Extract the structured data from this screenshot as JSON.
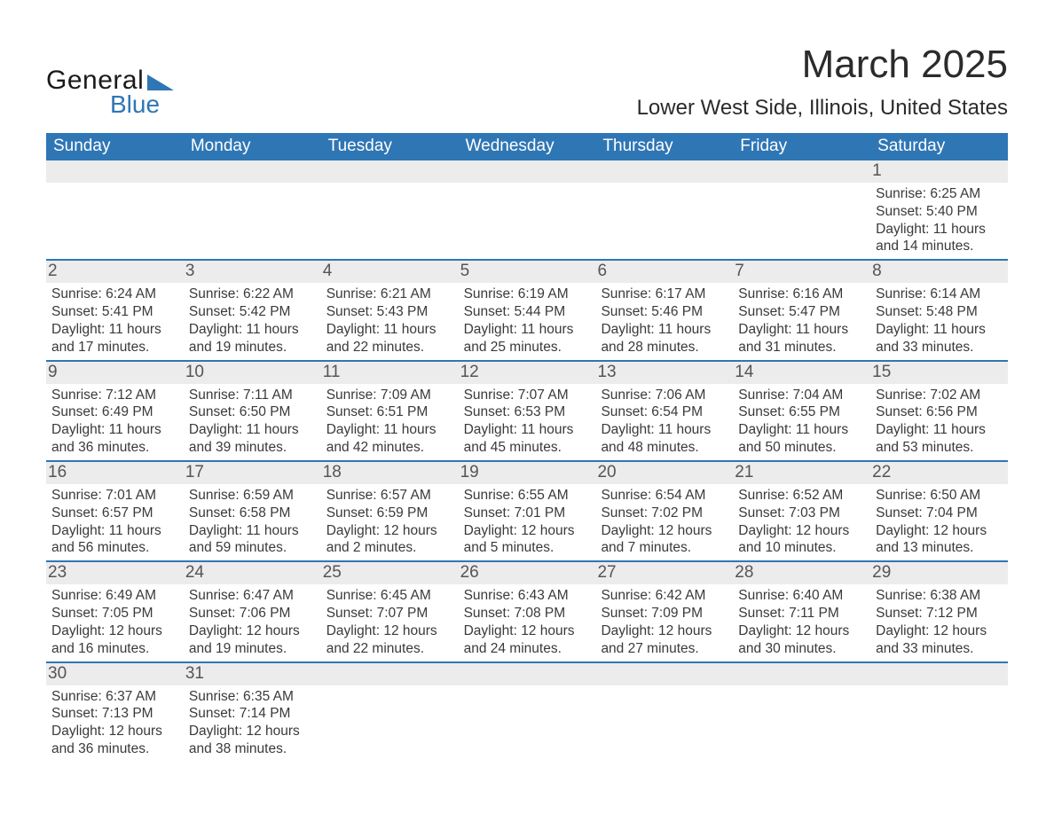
{
  "colors": {
    "header_bg": "#2f76b5",
    "daynum_bg": "#ececec",
    "week_border": "#2f76b5",
    "logo_blue": "#2f76b5"
  },
  "logo": {
    "word1": "General",
    "word2": "Blue"
  },
  "title": "March 2025",
  "location": "Lower West Side, Illinois, United States",
  "days_of_week": [
    "Sunday",
    "Monday",
    "Tuesday",
    "Wednesday",
    "Thursday",
    "Friday",
    "Saturday"
  ],
  "weeks": [
    [
      null,
      null,
      null,
      null,
      null,
      null,
      {
        "n": "1",
        "sr": "Sunrise: 6:25 AM",
        "ss": "Sunset: 5:40 PM",
        "dl": "Daylight: 11 hours and 14 minutes."
      }
    ],
    [
      {
        "n": "2",
        "sr": "Sunrise: 6:24 AM",
        "ss": "Sunset: 5:41 PM",
        "dl": "Daylight: 11 hours and 17 minutes."
      },
      {
        "n": "3",
        "sr": "Sunrise: 6:22 AM",
        "ss": "Sunset: 5:42 PM",
        "dl": "Daylight: 11 hours and 19 minutes."
      },
      {
        "n": "4",
        "sr": "Sunrise: 6:21 AM",
        "ss": "Sunset: 5:43 PM",
        "dl": "Daylight: 11 hours and 22 minutes."
      },
      {
        "n": "5",
        "sr": "Sunrise: 6:19 AM",
        "ss": "Sunset: 5:44 PM",
        "dl": "Daylight: 11 hours and 25 minutes."
      },
      {
        "n": "6",
        "sr": "Sunrise: 6:17 AM",
        "ss": "Sunset: 5:46 PM",
        "dl": "Daylight: 11 hours and 28 minutes."
      },
      {
        "n": "7",
        "sr": "Sunrise: 6:16 AM",
        "ss": "Sunset: 5:47 PM",
        "dl": "Daylight: 11 hours and 31 minutes."
      },
      {
        "n": "8",
        "sr": "Sunrise: 6:14 AM",
        "ss": "Sunset: 5:48 PM",
        "dl": "Daylight: 11 hours and 33 minutes."
      }
    ],
    [
      {
        "n": "9",
        "sr": "Sunrise: 7:12 AM",
        "ss": "Sunset: 6:49 PM",
        "dl": "Daylight: 11 hours and 36 minutes."
      },
      {
        "n": "10",
        "sr": "Sunrise: 7:11 AM",
        "ss": "Sunset: 6:50 PM",
        "dl": "Daylight: 11 hours and 39 minutes."
      },
      {
        "n": "11",
        "sr": "Sunrise: 7:09 AM",
        "ss": "Sunset: 6:51 PM",
        "dl": "Daylight: 11 hours and 42 minutes."
      },
      {
        "n": "12",
        "sr": "Sunrise: 7:07 AM",
        "ss": "Sunset: 6:53 PM",
        "dl": "Daylight: 11 hours and 45 minutes."
      },
      {
        "n": "13",
        "sr": "Sunrise: 7:06 AM",
        "ss": "Sunset: 6:54 PM",
        "dl": "Daylight: 11 hours and 48 minutes."
      },
      {
        "n": "14",
        "sr": "Sunrise: 7:04 AM",
        "ss": "Sunset: 6:55 PM",
        "dl": "Daylight: 11 hours and 50 minutes."
      },
      {
        "n": "15",
        "sr": "Sunrise: 7:02 AM",
        "ss": "Sunset: 6:56 PM",
        "dl": "Daylight: 11 hours and 53 minutes."
      }
    ],
    [
      {
        "n": "16",
        "sr": "Sunrise: 7:01 AM",
        "ss": "Sunset: 6:57 PM",
        "dl": "Daylight: 11 hours and 56 minutes."
      },
      {
        "n": "17",
        "sr": "Sunrise: 6:59 AM",
        "ss": "Sunset: 6:58 PM",
        "dl": "Daylight: 11 hours and 59 minutes."
      },
      {
        "n": "18",
        "sr": "Sunrise: 6:57 AM",
        "ss": "Sunset: 6:59 PM",
        "dl": "Daylight: 12 hours and 2 minutes."
      },
      {
        "n": "19",
        "sr": "Sunrise: 6:55 AM",
        "ss": "Sunset: 7:01 PM",
        "dl": "Daylight: 12 hours and 5 minutes."
      },
      {
        "n": "20",
        "sr": "Sunrise: 6:54 AM",
        "ss": "Sunset: 7:02 PM",
        "dl": "Daylight: 12 hours and 7 minutes."
      },
      {
        "n": "21",
        "sr": "Sunrise: 6:52 AM",
        "ss": "Sunset: 7:03 PM",
        "dl": "Daylight: 12 hours and 10 minutes."
      },
      {
        "n": "22",
        "sr": "Sunrise: 6:50 AM",
        "ss": "Sunset: 7:04 PM",
        "dl": "Daylight: 12 hours and 13 minutes."
      }
    ],
    [
      {
        "n": "23",
        "sr": "Sunrise: 6:49 AM",
        "ss": "Sunset: 7:05 PM",
        "dl": "Daylight: 12 hours and 16 minutes."
      },
      {
        "n": "24",
        "sr": "Sunrise: 6:47 AM",
        "ss": "Sunset: 7:06 PM",
        "dl": "Daylight: 12 hours and 19 minutes."
      },
      {
        "n": "25",
        "sr": "Sunrise: 6:45 AM",
        "ss": "Sunset: 7:07 PM",
        "dl": "Daylight: 12 hours and 22 minutes."
      },
      {
        "n": "26",
        "sr": "Sunrise: 6:43 AM",
        "ss": "Sunset: 7:08 PM",
        "dl": "Daylight: 12 hours and 24 minutes."
      },
      {
        "n": "27",
        "sr": "Sunrise: 6:42 AM",
        "ss": "Sunset: 7:09 PM",
        "dl": "Daylight: 12 hours and 27 minutes."
      },
      {
        "n": "28",
        "sr": "Sunrise: 6:40 AM",
        "ss": "Sunset: 7:11 PM",
        "dl": "Daylight: 12 hours and 30 minutes."
      },
      {
        "n": "29",
        "sr": "Sunrise: 6:38 AM",
        "ss": "Sunset: 7:12 PM",
        "dl": "Daylight: 12 hours and 33 minutes."
      }
    ],
    [
      {
        "n": "30",
        "sr": "Sunrise: 6:37 AM",
        "ss": "Sunset: 7:13 PM",
        "dl": "Daylight: 12 hours and 36 minutes."
      },
      {
        "n": "31",
        "sr": "Sunrise: 6:35 AM",
        "ss": "Sunset: 7:14 PM",
        "dl": "Daylight: 12 hours and 38 minutes."
      },
      null,
      null,
      null,
      null,
      null
    ]
  ]
}
